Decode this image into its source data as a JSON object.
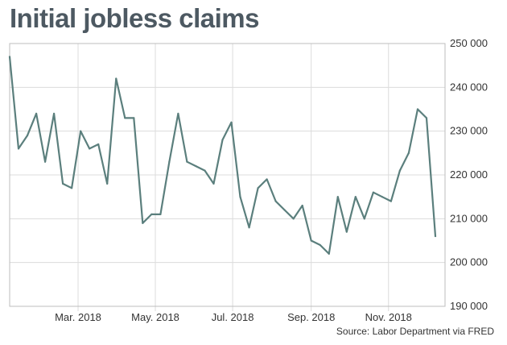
{
  "chart_data": {
    "type": "line",
    "title": "Initial jobless claims",
    "source": "Source: Labor Department via FRED",
    "x_tick_labels": [
      "Mar. 2018",
      "May. 2018",
      "Jul. 2018",
      "Sep. 2018",
      "Nov. 2018"
    ],
    "y_tick_labels": [
      "190 000",
      "200 000",
      "210 000",
      "220 000",
      "230 000",
      "240 000",
      "250 000"
    ],
    "ylim": [
      190000,
      250000
    ],
    "grid": true,
    "series": [
      {
        "color": "#5b7f7d",
        "x": [
          "2018-01-06",
          "2018-01-13",
          "2018-01-20",
          "2018-01-27",
          "2018-02-03",
          "2018-02-10",
          "2018-02-17",
          "2018-02-24",
          "2018-03-03",
          "2018-03-10",
          "2018-03-17",
          "2018-03-24",
          "2018-03-31",
          "2018-04-07",
          "2018-04-14",
          "2018-04-21",
          "2018-04-28",
          "2018-05-05",
          "2018-05-12",
          "2018-05-19",
          "2018-05-26",
          "2018-06-02",
          "2018-06-09",
          "2018-06-16",
          "2018-06-23",
          "2018-06-30",
          "2018-07-07",
          "2018-07-14",
          "2018-07-21",
          "2018-07-28",
          "2018-08-04",
          "2018-08-11",
          "2018-08-18",
          "2018-08-25",
          "2018-09-01",
          "2018-09-08",
          "2018-09-15",
          "2018-09-22",
          "2018-09-29",
          "2018-10-06",
          "2018-10-13",
          "2018-10-20",
          "2018-10-27",
          "2018-11-03",
          "2018-11-10",
          "2018-11-17",
          "2018-11-24",
          "2018-12-01",
          "2018-12-08"
        ],
        "values": [
          247000,
          226000,
          229000,
          234000,
          223000,
          234000,
          218000,
          217000,
          230000,
          226000,
          227000,
          218000,
          242000,
          233000,
          233000,
          209000,
          211000,
          211000,
          223000,
          234000,
          223000,
          222000,
          221000,
          218000,
          228000,
          232000,
          215000,
          208000,
          217000,
          219000,
          214000,
          212000,
          210000,
          213000,
          205000,
          204000,
          202000,
          215000,
          207000,
          215000,
          210000,
          216000,
          215000,
          214000,
          221000,
          225000,
          235000,
          233000,
          206000
        ]
      }
    ]
  }
}
